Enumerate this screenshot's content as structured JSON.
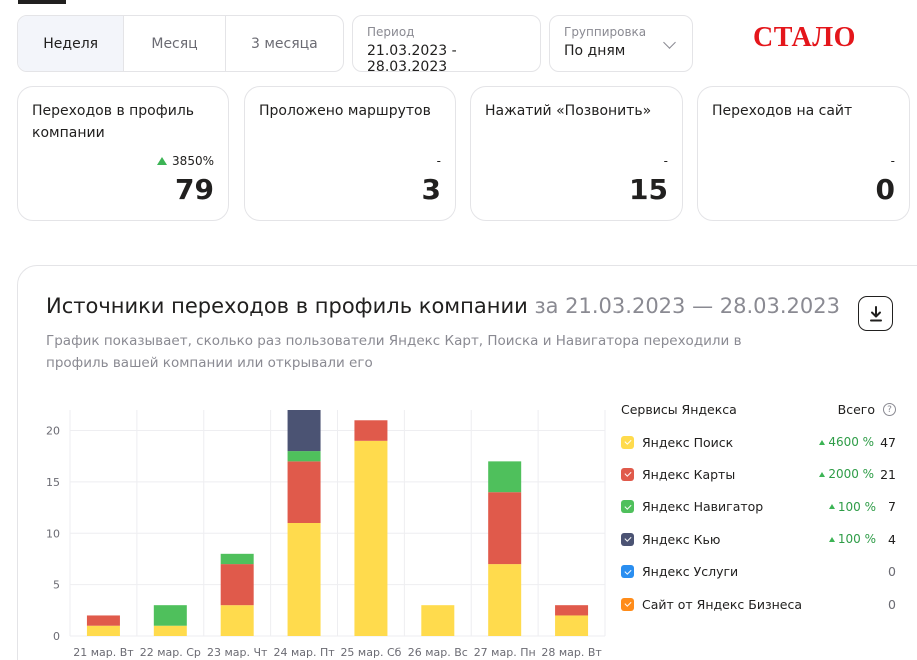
{
  "period_tabs": [
    "Неделя",
    "Месяц",
    "3 месяца"
  ],
  "active_tab": 0,
  "period": {
    "label": "Период",
    "value": "21.03.2023 - 28.03.2023"
  },
  "grouping": {
    "label": "Группировка",
    "value": "По дням"
  },
  "stamp": "СТАЛО",
  "metrics": [
    {
      "title": "Переходов в профиль компании",
      "delta": "3850%",
      "value": "79"
    },
    {
      "title": "Проложено маршрутов",
      "delta": "-",
      "value": "3"
    },
    {
      "title": "Нажатий «Позвонить»",
      "delta": "-",
      "value": "15"
    },
    {
      "title": "Переходов на сайт",
      "delta": "-",
      "value": "0"
    }
  ],
  "panel": {
    "title": "Источники переходов в профиль компании",
    "title_period": "за 21.03.2023 — 28.03.2023",
    "description": "График показывает, сколько раз пользователи Яндекс Карт, Поиска и Навигатора переходили в профиль вашей компании или открывали его"
  },
  "legend": {
    "header": "Сервисы Яндекса",
    "total_header": "Всего",
    "help_icon": "question-circle-icon",
    "items": [
      {
        "name": "Яндекс Поиск",
        "color": "#ffdb4d",
        "pct": "4600 %",
        "total": "47"
      },
      {
        "name": "Яндекс Карты",
        "color": "#e05a4b",
        "pct": "2000 %",
        "total": "21"
      },
      {
        "name": "Яндекс Навигатор",
        "color": "#4fc05c",
        "pct": "100 %",
        "total": "7"
      },
      {
        "name": "Яндекс Кью",
        "color": "#4b5373",
        "pct": "100 %",
        "total": "4"
      },
      {
        "name": "Яндекс Услуги",
        "color": "#2a8ef0",
        "pct": "",
        "total": "0"
      },
      {
        "name": "Сайт от Яндекс Бизнеса",
        "color": "#ff8c1a",
        "pct": "",
        "total": "0"
      }
    ]
  },
  "chart_data": {
    "type": "bar",
    "stacked": true,
    "categories": [
      "21 мар. Вт",
      "22 мар. Ср",
      "23 мар. Чт",
      "24 мар. Пт",
      "25 мар. Сб",
      "26 мар. Вс",
      "27 мар. Пн",
      "28 мар. Вт"
    ],
    "series": [
      {
        "name": "Яндекс Поиск",
        "color": "#ffdb4d",
        "values": [
          1,
          1,
          3,
          11,
          19,
          3,
          7,
          2
        ]
      },
      {
        "name": "Яндекс Карты",
        "color": "#e05a4b",
        "values": [
          1,
          0,
          4,
          6,
          2,
          0,
          7,
          1
        ]
      },
      {
        "name": "Яндекс Навигатор",
        "color": "#4fc05c",
        "values": [
          0,
          2,
          1,
          1,
          0,
          0,
          3,
          0
        ]
      },
      {
        "name": "Яндекс Кью",
        "color": "#4b5373",
        "values": [
          0,
          0,
          0,
          4,
          0,
          0,
          0,
          0
        ]
      }
    ],
    "yticks": [
      0,
      5,
      10,
      15,
      20
    ],
    "ylim": [
      0,
      22
    ],
    "grid": true,
    "legend": "right"
  }
}
